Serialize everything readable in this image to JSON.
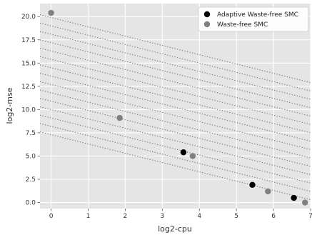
{
  "chart_data": {
    "type": "scatter",
    "xlabel": "log2-cpu",
    "ylabel": "log2-mse",
    "xlim": [
      -0.3,
      7.0
    ],
    "ylim": [
      -0.65,
      21.4
    ],
    "x_ticks": [
      0,
      1,
      2,
      3,
      4,
      5,
      6,
      7
    ],
    "y_ticks": [
      0.0,
      2.5,
      5.0,
      7.5,
      10.0,
      12.5,
      15.0,
      17.5,
      20.0
    ],
    "grid": true,
    "legend_position": "top-right",
    "series": [
      {
        "name": "Adaptive Waste-free SMC",
        "color": "#000000",
        "points": [
          {
            "x": 3.57,
            "y": 5.4
          },
          {
            "x": 5.43,
            "y": 1.9
          },
          {
            "x": 6.55,
            "y": 0.5
          }
        ]
      },
      {
        "name": "Waste-free SMC",
        "color": "#808080",
        "points": [
          {
            "x": 0.0,
            "y": 20.4
          },
          {
            "x": 1.85,
            "y": 9.1
          },
          {
            "x": 3.82,
            "y": 5.0
          },
          {
            "x": 5.85,
            "y": 1.2
          },
          {
            "x": 6.85,
            "y": 0.0
          }
        ]
      }
    ],
    "reference_lines": {
      "style": "dotted",
      "color": "#707070",
      "slope": -1,
      "intercepts": [
        7.3,
        8.2,
        9.1,
        10.0,
        10.9,
        11.8,
        12.7,
        13.6,
        14.5,
        15.4,
        16.3,
        17.2,
        18.1,
        19.0,
        19.9
      ]
    }
  }
}
